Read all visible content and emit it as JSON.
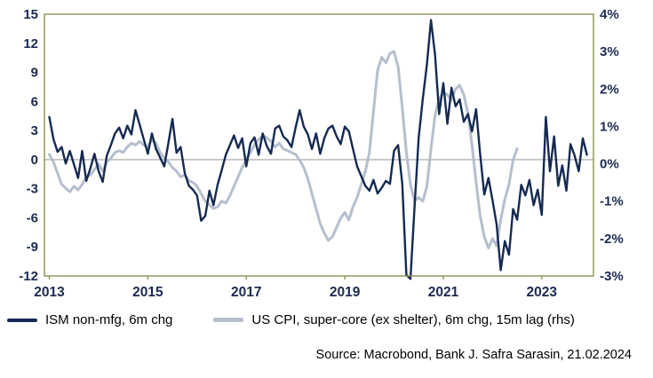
{
  "chart_data": {
    "type": "line",
    "title": "",
    "x_axis": {
      "tick_labels": [
        "2013",
        "2015",
        "2017",
        "2019",
        "2021",
        "2023"
      ],
      "tick_values": [
        2013,
        2015,
        2017,
        2019,
        2021,
        2023
      ],
      "range": [
        2012.9,
        2024.05
      ]
    },
    "left_axis": {
      "tick_labels": [
        "15",
        "12",
        "9",
        "6",
        "3",
        "0",
        "-3",
        "-6",
        "-9",
        "-12"
      ],
      "tick_values": [
        15,
        12,
        9,
        6,
        3,
        0,
        -3,
        -6,
        -9,
        -12
      ],
      "range": [
        -12,
        15
      ]
    },
    "right_axis": {
      "tick_labels": [
        "4%",
        "3%",
        "2%",
        "1%",
        "0%",
        "-1%",
        "-2%",
        "-3%"
      ],
      "tick_values": [
        4,
        3,
        2,
        1,
        0,
        -1,
        -2,
        -3
      ],
      "range": [
        -3,
        4
      ]
    },
    "zero_line": true,
    "series": [
      {
        "name": "ISM non-mfg, 6m chg",
        "axis": "left",
        "color": "#152a52",
        "stroke_width": 2.4,
        "x_start": 2013.0,
        "x_step_months": 1,
        "values": [
          4.4,
          2.1,
          0.8,
          1.3,
          -0.4,
          0.9,
          -0.5,
          -1.9,
          0.9,
          -2.2,
          -0.9,
          0.6,
          -1.2,
          -2.3,
          0.4,
          1.5,
          2.7,
          3.3,
          2.2,
          3.5,
          2.6,
          5.1,
          3.6,
          2.1,
          0.6,
          2.7,
          1.1,
          0.2,
          -0.7,
          1.7,
          4.2,
          0.7,
          1.3,
          -1.4,
          -2.7,
          -3.1,
          -3.7,
          -6.3,
          -5.8,
          -3.2,
          -4.7,
          -2.6,
          -1.1,
          0.5,
          1.5,
          2.5,
          1.2,
          2.2,
          -0.7,
          1.7,
          2.3,
          0.5,
          2.7,
          1.4,
          0.6,
          3.2,
          3.5,
          2.4,
          2.0,
          1.3,
          3.3,
          5.1,
          3.4,
          2.6,
          1.1,
          2.7,
          0.6,
          2.2,
          3.2,
          3.5,
          2.4,
          1.6,
          3.4,
          2.9,
          1.1,
          -0.7,
          -1.7,
          -2.7,
          -3.2,
          -2.1,
          -3.5,
          -2.9,
          -2.2,
          -2.5,
          0.9,
          1.5,
          -2.5,
          -11.9,
          -12.3,
          -4.9,
          2.2,
          6.3,
          9.8,
          14.4,
          10.8,
          4.7,
          7.9,
          3.7,
          7.4,
          5.5,
          6.2,
          3.9,
          4.7,
          2.9,
          5.2,
          0.5,
          -3.6,
          -1.9,
          -4.2,
          -6.7,
          -11.4,
          -8.4,
          -9.8,
          -5.1,
          -6.2,
          -2.6,
          -3.7,
          -2.1,
          -4.7,
          -3.1,
          -5.7,
          4.4,
          -1.2,
          2.4,
          -2.7,
          -0.6,
          -3.2,
          1.6,
          0.4,
          -1.2,
          2.2,
          0.5
        ]
      },
      {
        "name": "US CPI, super-core (ex shelter), 6m chg, 15m lag (rhs)",
        "axis": "right",
        "color": "#b6bfce",
        "stroke_width": 3,
        "x_start": 2013.0,
        "x_step_months": 1,
        "values": [
          0.25,
          0.05,
          -0.25,
          -0.55,
          -0.65,
          -0.75,
          -0.6,
          -0.7,
          -0.55,
          -0.35,
          -0.3,
          -0.15,
          0.0,
          -0.2,
          0.05,
          0.15,
          0.3,
          0.35,
          0.3,
          0.45,
          0.55,
          0.5,
          0.6,
          0.5,
          0.45,
          0.65,
          0.55,
          0.3,
          0.15,
          0.05,
          -0.1,
          -0.2,
          -0.35,
          -0.3,
          -0.45,
          -0.5,
          -0.6,
          -0.8,
          -1.0,
          -1.1,
          -1.2,
          -1.15,
          -1.0,
          -1.05,
          -0.85,
          -0.6,
          -0.35,
          -0.1,
          0.1,
          0.3,
          0.5,
          0.65,
          0.75,
          0.7,
          0.6,
          0.45,
          0.55,
          0.4,
          0.35,
          0.3,
          0.25,
          0.1,
          -0.1,
          -0.4,
          -0.8,
          -1.2,
          -1.6,
          -1.85,
          -2.05,
          -1.95,
          -1.7,
          -1.45,
          -1.3,
          -1.5,
          -1.15,
          -0.9,
          -0.55,
          -0.2,
          0.3,
          1.4,
          2.5,
          2.85,
          2.7,
          2.95,
          3.0,
          2.6,
          1.5,
          0.3,
          -0.55,
          -1.0,
          -0.9,
          -1.0,
          -0.6,
          0.4,
          1.3,
          1.75,
          1.9,
          1.85,
          1.7,
          2.0,
          2.1,
          1.85,
          1.35,
          0.5,
          -0.5,
          -1.4,
          -1.95,
          -2.25,
          -2.0,
          -2.2,
          -1.5,
          -0.95,
          -0.55,
          0.1,
          0.4
        ]
      }
    ]
  },
  "source_note": "Source: Macrobond, Bank J. Safra Sarasin, 21.02.2024",
  "colors": {
    "background": "#ffffff",
    "frame": "#8f9150",
    "zero_line": "#b3b3b3",
    "tick_text": "#1b2a50",
    "legend_text": "#000000",
    "ism_line": "#152a52",
    "cpi_line": "#b6bfce"
  }
}
